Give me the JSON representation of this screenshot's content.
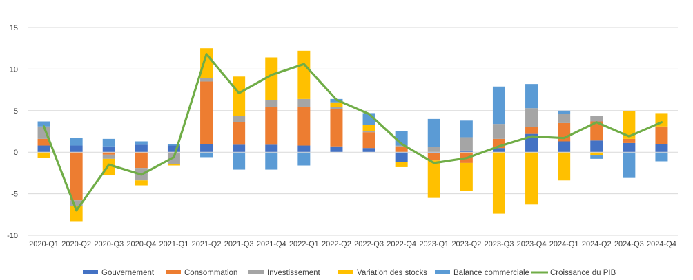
{
  "chart_data": {
    "type": "bar",
    "stacked": true,
    "title": "",
    "xlabel": "",
    "ylabel": "",
    "ylim": [
      -10,
      15
    ],
    "yticks": [
      -10,
      -5,
      0,
      5,
      10,
      15
    ],
    "grid": true,
    "legend_position": "bottom",
    "categories": [
      "2020-Q1",
      "2020-Q2",
      "2020-Q3",
      "2020-Q4",
      "2021-Q1",
      "2021-Q2",
      "2021-Q3",
      "2021-Q4",
      "2022-Q1",
      "2022-Q2",
      "2022-Q3",
      "2022-Q4",
      "2023-Q1",
      "2023-Q2",
      "2023-Q3",
      "2023-Q4",
      "2024-Q1",
      "2024-Q2",
      "2024-Q3",
      "2024-Q4"
    ],
    "series": [
      {
        "name": "Gouvernement",
        "kind": "bar",
        "color": "#4472c4",
        "values": [
          0.8,
          0.8,
          0.7,
          0.9,
          0.8,
          1.0,
          0.9,
          0.9,
          0.8,
          0.7,
          0.5,
          -1.2,
          -0.1,
          0.2,
          0.5,
          2.2,
          1.3,
          1.4,
          1.1,
          1.0
        ]
      },
      {
        "name": "Consommation",
        "kind": "bar",
        "color": "#ed7d31",
        "values": [
          0.8,
          -5.8,
          -0.3,
          -1.9,
          0.0,
          7.5,
          2.7,
          4.5,
          4.6,
          4.5,
          1.9,
          0.7,
          -0.9,
          -1.3,
          1.1,
          0.8,
          2.2,
          2.3,
          0.5,
          2.1
        ]
      },
      {
        "name": "Investissement",
        "kind": "bar",
        "color": "#a5a5a5",
        "values": [
          1.5,
          -0.7,
          -0.5,
          -1.5,
          -1.4,
          0.4,
          0.8,
          0.9,
          1.0,
          0.2,
          0.1,
          0.1,
          0.6,
          1.6,
          1.8,
          2.3,
          1.1,
          0.7,
          0.0,
          0.0
        ]
      },
      {
        "name": "Variation des stocks",
        "kind": "bar",
        "color": "#ffc000",
        "values": [
          -0.7,
          -1.8,
          -2.0,
          -0.6,
          -0.2,
          3.6,
          4.7,
          5.1,
          5.8,
          0.6,
          0.8,
          -0.6,
          -4.5,
          -3.4,
          -7.4,
          -6.3,
          -3.4,
          -0.4,
          3.3,
          1.6
        ]
      },
      {
        "name": "Balance commerciale",
        "kind": "bar",
        "color": "#5b9bd5",
        "values": [
          0.6,
          0.9,
          0.9,
          0.4,
          0.2,
          -0.6,
          -2.1,
          -2.1,
          -1.6,
          0.4,
          1.4,
          1.7,
          3.4,
          2.0,
          4.5,
          2.9,
          0.4,
          -0.4,
          -3.1,
          -1.1
        ]
      },
      {
        "name": "Croissance du PIB",
        "kind": "line",
        "color": "#70ad47",
        "values": [
          3.1,
          -7.0,
          -1.5,
          -2.7,
          -0.6,
          11.8,
          7.1,
          9.3,
          10.6,
          6.3,
          4.6,
          1.0,
          -1.3,
          -0.7,
          0.7,
          1.9,
          1.7,
          3.6,
          1.9,
          3.6
        ]
      }
    ]
  }
}
